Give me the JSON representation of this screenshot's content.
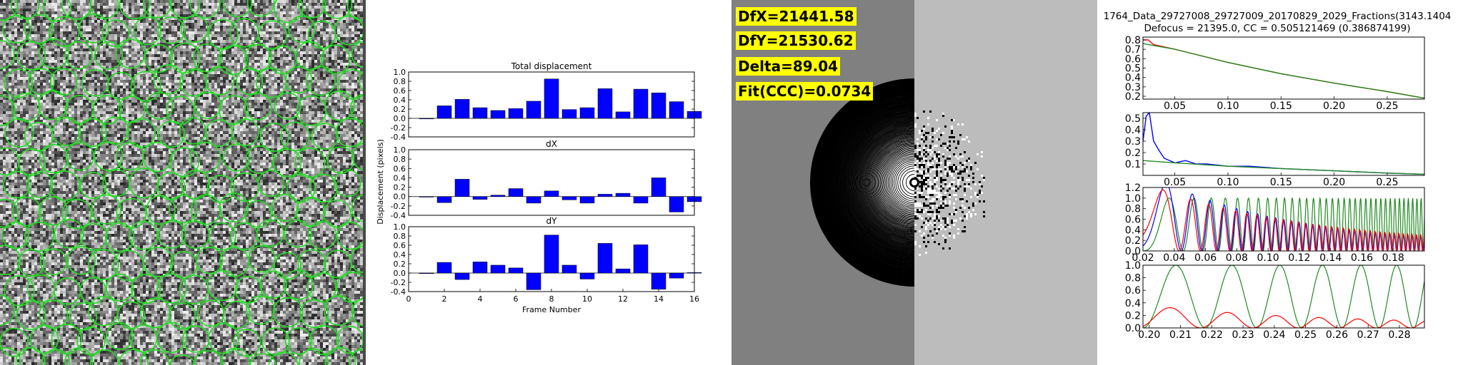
{
  "colors": {
    "bar": "#0000ff",
    "particle_circle": "#22dd22",
    "line_red": "#ff0000",
    "line_green": "#228b22",
    "line_blue": "#0000ff",
    "label_bg": "#ffff00"
  },
  "micrograph": {
    "icon": "micrograph-image"
  },
  "ctf_labels": {
    "dfx": "DfX=21441.58",
    "dfy": "DfY=21530.62",
    "delta": "Delta=89.04",
    "fit": "Fit(CCC)=0.0734"
  },
  "chart_data": [
    {
      "type": "bar",
      "title": "Total displacement",
      "ylabel": "Displacement (pixels)",
      "xlabel": "Frame Number",
      "xlim": [
        0,
        16
      ],
      "xticks": [
        "0",
        "2",
        "4",
        "6",
        "8",
        "10",
        "12",
        "14",
        "16"
      ],
      "ylim": [
        -0.4,
        1.0
      ],
      "yticks": [
        "1.0",
        "0.8",
        "0.6",
        "0.4",
        "0.2",
        "0.0",
        "-0.2",
        "-0.4"
      ],
      "x": [
        1,
        2,
        3,
        4,
        5,
        6,
        7,
        8,
        9,
        10,
        11,
        12,
        13,
        14,
        15,
        16
      ],
      "values": [
        0.0,
        0.27,
        0.41,
        0.23,
        0.17,
        0.21,
        0.37,
        0.85,
        0.19,
        0.23,
        0.64,
        0.14,
        0.63,
        0.55,
        0.36,
        0.15
      ]
    },
    {
      "type": "bar",
      "title": "dX",
      "xlim": [
        0,
        16
      ],
      "ylim": [
        -0.4,
        1.0
      ],
      "yticks": [
        "1.0",
        "0.8",
        "0.6",
        "0.4",
        "0.2",
        "0.0",
        "-0.2",
        "-0.4"
      ],
      "x": [
        1,
        2,
        3,
        4,
        5,
        6,
        7,
        8,
        9,
        10,
        11,
        12,
        13,
        14,
        15,
        16
      ],
      "values": [
        0.0,
        -0.13,
        0.37,
        -0.06,
        0.03,
        0.17,
        -0.14,
        0.12,
        -0.07,
        -0.14,
        0.05,
        0.07,
        -0.14,
        0.4,
        -0.33,
        -0.11
      ]
    },
    {
      "type": "bar",
      "title": "dY",
      "xlim": [
        0,
        16
      ],
      "ylim": [
        -0.4,
        1.0
      ],
      "yticks": [
        "1.0",
        "0.8",
        "0.6",
        "0.4",
        "0.2",
        "0.0",
        "-0.2",
        "-0.4"
      ],
      "x": [
        1,
        2,
        3,
        4,
        5,
        6,
        7,
        8,
        9,
        10,
        11,
        12,
        13,
        14,
        15,
        16
      ],
      "values": [
        0.0,
        0.23,
        -0.14,
        0.24,
        0.17,
        0.11,
        -0.36,
        0.82,
        0.17,
        -0.13,
        0.64,
        0.09,
        0.61,
        -0.35,
        -0.11,
        0.01
      ]
    },
    {
      "type": "line",
      "title": "1764_Data_29727008_29727009_20170829_2029_Fractions(3143.1404",
      "subtitle": "Defocus = 21395.0, CC = 0.505121469 (0.386874199)",
      "xlim": [
        0.02,
        0.285
      ],
      "xticks": [
        "0.05",
        "0.10",
        "0.15",
        "0.20",
        "0.25"
      ],
      "ylim": [
        0.17,
        0.83
      ],
      "yticks": [
        "0.8",
        "0.7",
        "0.6",
        "0.5",
        "0.4",
        "0.3",
        "0.2"
      ],
      "series": [
        {
          "color": "#ff0000",
          "x": [
            0.02,
            0.025,
            0.03,
            0.05,
            0.1,
            0.15,
            0.2,
            0.25,
            0.285
          ],
          "y": [
            0.8,
            0.8,
            0.75,
            0.7,
            0.56,
            0.44,
            0.34,
            0.25,
            0.18
          ]
        },
        {
          "color": "#228b22",
          "x": [
            0.02,
            0.05,
            0.1,
            0.15,
            0.2,
            0.25,
            0.285
          ],
          "y": [
            0.76,
            0.7,
            0.56,
            0.44,
            0.34,
            0.25,
            0.18
          ]
        }
      ]
    },
    {
      "type": "line",
      "xlim": [
        0.02,
        0.285
      ],
      "xticks": [
        "0.05",
        "0.10",
        "0.15",
        "0.20",
        "0.25"
      ],
      "ylim": [
        0.0,
        0.55
      ],
      "yticks": [
        "0.5",
        "0.4",
        "0.3",
        "0.2",
        "0.1"
      ],
      "series": [
        {
          "color": "#0000ff",
          "x": [
            0.02,
            0.023,
            0.026,
            0.03,
            0.035,
            0.04,
            0.05,
            0.06,
            0.07,
            0.08,
            0.1,
            0.12,
            0.15,
            0.2,
            0.25,
            0.285
          ],
          "y": [
            0.3,
            0.52,
            0.55,
            0.3,
            0.22,
            0.15,
            0.11,
            0.13,
            0.1,
            0.1,
            0.08,
            0.08,
            0.06,
            0.04,
            0.02,
            0.01
          ]
        },
        {
          "color": "#228b22",
          "x": [
            0.02,
            0.05,
            0.1,
            0.15,
            0.2,
            0.25,
            0.285
          ],
          "y": [
            0.13,
            0.11,
            0.08,
            0.06,
            0.04,
            0.02,
            0.01
          ]
        }
      ]
    },
    {
      "type": "line",
      "xlim": [
        0.02,
        0.2
      ],
      "xticks": [
        "0.02",
        "0.04",
        "0.06",
        "0.08",
        "0.10",
        "0.12",
        "0.14",
        "0.16",
        "0.18"
      ],
      "ylim": [
        0.0,
        1.2
      ],
      "yticks": [
        "1.2",
        "1.0",
        "0.8",
        "0.6",
        "0.4",
        "0.2",
        "0.0"
      ],
      "series": [
        {
          "color": "#228b22",
          "x": [
            0.02,
            0.2
          ],
          "y": [
            0.0,
            1.0
          ]
        },
        {
          "color": "#0000ff",
          "x": [
            0.02,
            0.2
          ],
          "y": [
            0.0,
            0.6
          ]
        },
        {
          "color": "#ff0000",
          "x": [
            0.02,
            0.2
          ],
          "y": [
            0.0,
            0.5
          ]
        }
      ]
    },
    {
      "type": "line",
      "xlim": [
        0.198,
        0.288
      ],
      "xticks": [
        "0.20",
        "0.21",
        "0.22",
        "0.23",
        "0.24",
        "0.25",
        "0.26",
        "0.27",
        "0.28"
      ],
      "ylim": [
        0.0,
        1.0
      ],
      "yticks": [
        "1.0",
        "0.8",
        "0.6",
        "0.4",
        "0.2",
        "0.0"
      ],
      "series": [
        {
          "color": "#228b22",
          "x": [
            0.198,
            0.288
          ],
          "y": [
            0.0,
            1.0
          ]
        },
        {
          "color": "#ff0000",
          "x": [
            0.198,
            0.288
          ],
          "y": [
            0.0,
            0.35
          ]
        }
      ]
    }
  ]
}
